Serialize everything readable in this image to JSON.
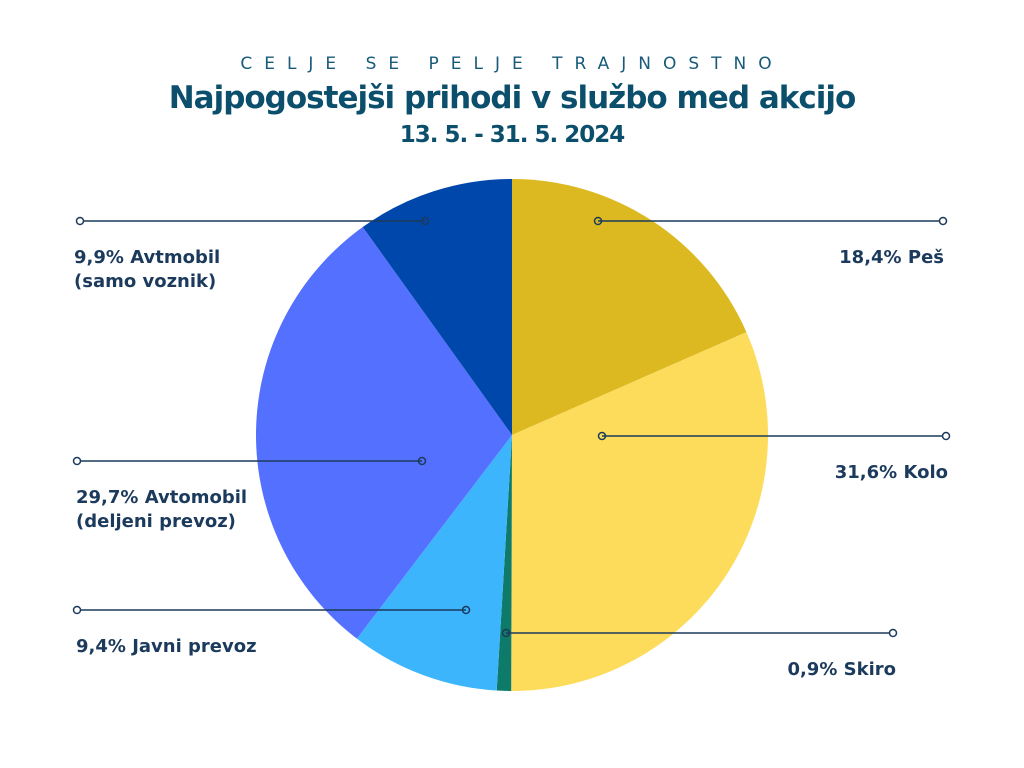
{
  "chart_data": {
    "type": "pie",
    "supertitle": "CELJE SE PELJE TRAJNOSTNO",
    "title": "Najpogostejši prihodi v službo med akcijo",
    "subtitle": "13. 5. - 31. 5. 2024",
    "categories": [
      "Peš",
      "Kolo",
      "Skiro",
      "Javni prevoz",
      "Avtomobil (deljeni prevoz)",
      "Avtmobil (samo voznik)"
    ],
    "values": [
      18.4,
      31.6,
      0.9,
      9.4,
      29.7,
      9.9
    ],
    "value_labels": [
      "18,4%",
      "31,6%",
      "0,9%",
      "9,4%",
      "29,7%",
      "9,9%"
    ],
    "colors": [
      "#dcb920",
      "#fddc5c",
      "#0e7a6a",
      "#3db5fd",
      "#5470fe",
      "#0047ab"
    ]
  }
}
